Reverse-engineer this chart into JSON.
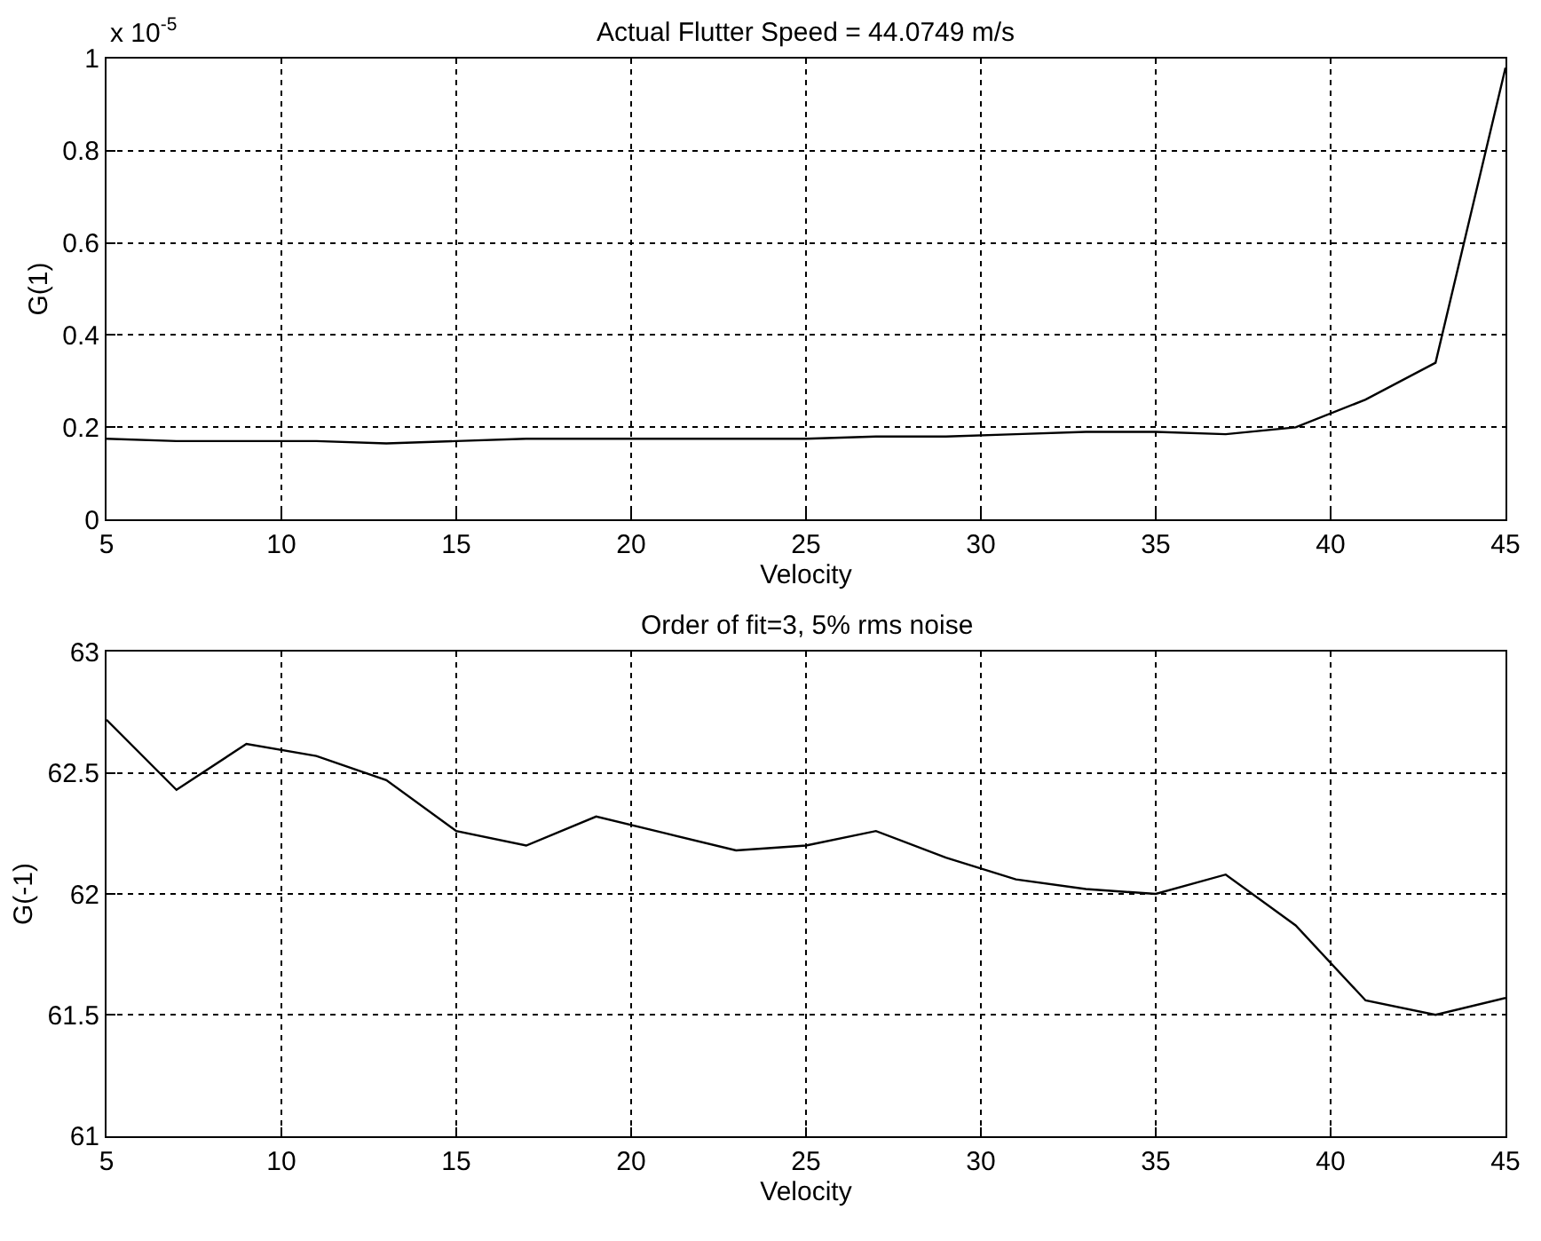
{
  "chart_data": [
    {
      "type": "line",
      "title": "Actual Flutter Speed = 44.0749 m/s",
      "xlabel": "Velocity",
      "ylabel": "G(1)",
      "annotations": [
        "x 10$^{-5}$"
      ],
      "grid": true,
      "line_style": "solid",
      "x": [
        5,
        7,
        9,
        11,
        13,
        15,
        17,
        19,
        21,
        23,
        25,
        27,
        29,
        31,
        33,
        35,
        37,
        39,
        41,
        43,
        45
      ],
      "series": [
        {
          "color": "#000000",
          "values": [
            0.175,
            0.17,
            0.17,
            0.17,
            0.165,
            0.17,
            0.175,
            0.175,
            0.175,
            0.175,
            0.175,
            0.18,
            0.18,
            0.185,
            0.19,
            0.19,
            0.185,
            0.2,
            0.26,
            0.34,
            0.98
          ]
        }
      ],
      "xlim": [
        5,
        45
      ],
      "xticks": [
        5,
        10,
        15,
        20,
        25,
        30,
        35,
        40,
        45
      ],
      "ylim": [
        0,
        1
      ],
      "yticks": [
        0,
        0.2,
        0.4,
        0.6,
        0.8,
        1
      ]
    },
    {
      "type": "line",
      "title": "Order of fit=3, 5% rms noise",
      "xlabel": "Velocity",
      "ylabel": "G(-1)",
      "grid": true,
      "line_style": "solid",
      "x": [
        5,
        7,
        9,
        11,
        13,
        15,
        17,
        19,
        21,
        23,
        25,
        27,
        29,
        31,
        33,
        35,
        37,
        39,
        41,
        43,
        45
      ],
      "series": [
        {
          "color": "#000000",
          "values": [
            62.72,
            62.43,
            62.62,
            62.57,
            62.47,
            62.26,
            62.2,
            62.32,
            62.25,
            62.18,
            62.2,
            62.26,
            62.15,
            62.06,
            62.02,
            62.0,
            62.08,
            61.87,
            61.56,
            61.5,
            61.57
          ]
        }
      ],
      "xlim": [
        5,
        45
      ],
      "xticks": [
        5,
        10,
        15,
        20,
        25,
        30,
        35,
        40,
        45
      ],
      "ylim": [
        61,
        63
      ],
      "yticks": [
        61,
        61.5,
        62,
        62.5,
        63
      ]
    }
  ]
}
